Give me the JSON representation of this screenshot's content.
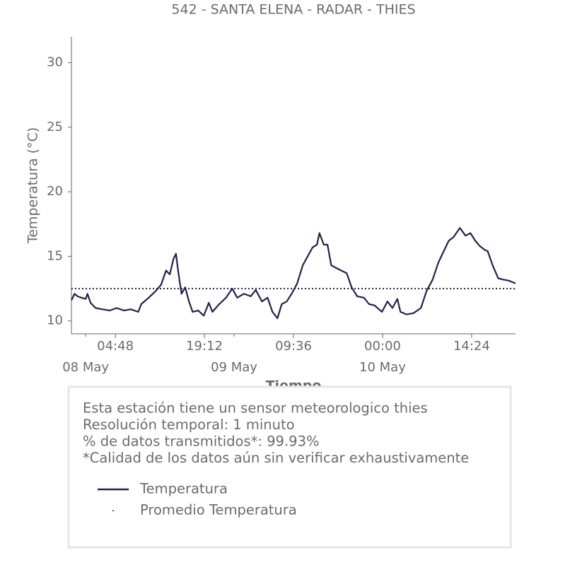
{
  "chart_data": {
    "type": "line",
    "title": "542 - SANTA ELENA - RADAR - THIES",
    "xlabel": "Tiempo",
    "ylabel": "Temperatura (°C)",
    "series": [
      {
        "name": "Temperatura",
        "color": "#22224a",
        "style": "solid",
        "x": [
          "05-07 21:42",
          "05-07 22:12",
          "05-07 22:42",
          "05-07 23:18",
          "05-08 00:00",
          "05-08 00:18",
          "05-08 00:48",
          "05-08 01:36",
          "05-08 02:42",
          "05-08 03:54",
          "05-08 05:00",
          "05-08 06:12",
          "05-08 07:18",
          "05-08 08:30",
          "05-08 09:00",
          "05-08 10:12",
          "05-08 11:18",
          "05-08 12:12",
          "05-08 13:00",
          "05-08 13:36",
          "05-08 14:12",
          "05-08 14:36",
          "05-08 15:00",
          "05-08 15:30",
          "05-08 16:06",
          "05-08 16:42",
          "05-08 17:18",
          "05-08 18:12",
          "05-08 19:06",
          "05-08 19:54",
          "05-08 20:30",
          "05-08 21:36",
          "05-08 22:42",
          "05-08 23:42",
          "05-09 00:30",
          "05-09 01:36",
          "05-09 02:42",
          "05-09 03:30",
          "05-09 04:30",
          "05-09 05:24",
          "05-09 06:12",
          "05-09 07:00",
          "05-09 07:42",
          "05-09 08:30",
          "05-09 09:18",
          "05-09 10:12",
          "05-09 11:06",
          "05-09 11:54",
          "05-09 12:42",
          "05-09 13:24",
          "05-09 13:48",
          "05-09 14:30",
          "05-09 15:06",
          "05-09 15:42",
          "05-09 16:30",
          "05-09 17:18",
          "05-09 18:12",
          "05-09 19:00",
          "05-09 19:54",
          "05-09 21:00",
          "05-09 21:48",
          "05-09 22:42",
          "05-09 23:54",
          "05-10 00:48",
          "05-10 01:36",
          "05-10 02:24",
          "05-10 02:54",
          "05-10 03:54",
          "05-10 05:00",
          "05-10 06:12",
          "05-10 07:06",
          "05-10 08:06",
          "05-10 09:00",
          "05-10 09:54",
          "05-10 10:42",
          "05-10 11:30",
          "05-10 12:30",
          "05-10 13:24",
          "05-10 14:12",
          "05-10 15:00",
          "05-10 15:42",
          "05-10 16:30",
          "05-10 17:00",
          "05-10 17:48",
          "05-10 18:42",
          "05-10 19:30",
          "05-10 20:30",
          "05-10 21:30"
        ],
        "values": [
          11.6,
          12.1,
          11.9,
          11.8,
          11.7,
          12.1,
          11.4,
          11.0,
          10.9,
          10.8,
          11.0,
          10.8,
          10.9,
          10.7,
          11.3,
          11.8,
          12.3,
          12.8,
          13.9,
          13.6,
          14.8,
          15.2,
          13.7,
          12.1,
          12.6,
          11.5,
          10.7,
          10.8,
          10.4,
          11.4,
          10.7,
          11.3,
          11.8,
          12.5,
          11.8,
          12.1,
          11.9,
          12.4,
          11.5,
          11.8,
          10.7,
          10.2,
          11.3,
          11.5,
          12.1,
          12.9,
          14.3,
          15.0,
          15.7,
          15.9,
          16.8,
          15.9,
          15.9,
          14.3,
          14.1,
          13.9,
          13.7,
          12.6,
          11.9,
          11.8,
          11.3,
          11.2,
          10.7,
          11.5,
          11.0,
          11.7,
          10.7,
          10.5,
          10.6,
          11.0,
          12.3,
          13.2,
          14.5,
          15.4,
          16.2,
          16.5,
          17.2,
          16.6,
          16.8,
          16.2,
          15.8,
          15.5,
          15.4,
          14.3,
          13.3,
          13.2,
          13.1,
          12.9
        ]
      },
      {
        "name": "Promedio Temperatura",
        "color": "#22224a",
        "style": "dotted",
        "x": [
          "05-07 21:42",
          "05-10 21:30"
        ],
        "values": [
          12.5,
          12.5
        ]
      }
    ],
    "xlim": [
      "05-07 21:42",
      "05-10 21:30"
    ],
    "xticks": [
      {
        "value": "05-08 04:48",
        "label": "04:48"
      },
      {
        "value": "05-08 19:12",
        "label": "19:12"
      },
      {
        "value": "05-09 09:36",
        "label": "09:36"
      },
      {
        "value": "05-10 00:00",
        "label": "00:00"
      },
      {
        "value": "05-10 14:24",
        "label": "14:24"
      }
    ],
    "xticks_dates": [
      {
        "value": "05-08 00:00",
        "label": "08 May"
      },
      {
        "value": "05-09 00:00",
        "label": "09 May"
      },
      {
        "value": "05-10 00:00",
        "label": "10 May"
      }
    ],
    "ylim": [
      9,
      32
    ],
    "yticks": [
      10,
      15,
      20,
      25,
      30
    ],
    "info": [
      "Esta estación tiene un sensor meteorologico thies",
      "Resolución temporal: 1 minuto",
      "% de datos transmitidos*: 99.93%",
      "*Calidad de los datos aún sin verificar exhaustivamente"
    ]
  }
}
